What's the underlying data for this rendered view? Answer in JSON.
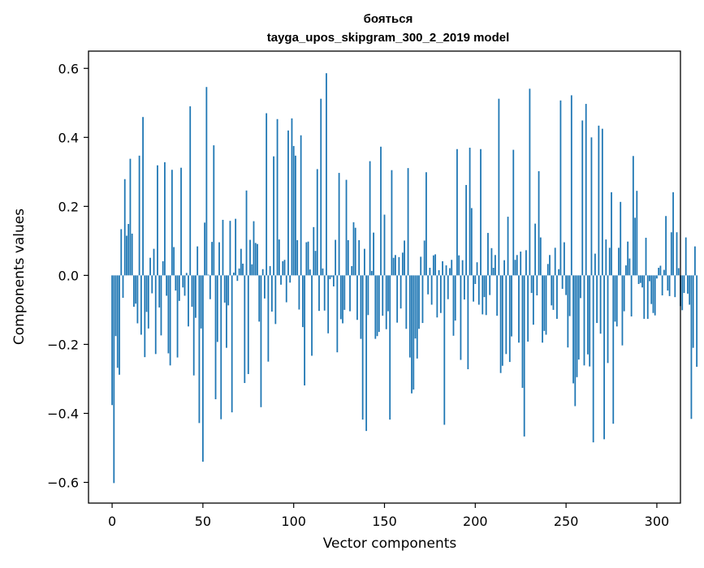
{
  "chart_data": {
    "type": "bar",
    "title": "бояться",
    "subtitle": "tayga_upos_skipgram_300_2_2019 model",
    "xlabel": "Vector components",
    "ylabel": "Components values",
    "xlim": [
      -13,
      313
    ],
    "ylim": [
      -0.66,
      0.65
    ],
    "x_ticks": [
      0,
      50,
      100,
      150,
      200,
      250,
      300
    ],
    "y_ticks": [
      -0.6,
      -0.4,
      -0.2,
      0.0,
      0.2,
      0.4,
      0.6
    ],
    "x_tick_labels": [
      "0",
      "50",
      "100",
      "150",
      "200",
      "250",
      "300"
    ],
    "y_tick_labels": [
      "−0.6",
      "−0.4",
      "−0.2",
      "0.0",
      "0.2",
      "0.4",
      "0.6"
    ],
    "bar_color": "#1f77b4",
    "grid": false,
    "legend": false,
    "values": [
      -0.376,
      -0.602,
      -0.176,
      -0.268,
      -0.288,
      0.134,
      -0.065,
      0.279,
      0.115,
      0.149,
      0.338,
      0.121,
      -0.091,
      -0.082,
      -0.139,
      0.347,
      -0.172,
      0.459,
      -0.237,
      -0.106,
      -0.154,
      0.051,
      -0.052,
      0.077,
      -0.228,
      0.319,
      -0.093,
      -0.174,
      0.041,
      0.328,
      -0.059,
      -0.226,
      -0.261,
      0.306,
      0.082,
      -0.044,
      -0.238,
      -0.074,
      0.312,
      -0.035,
      -0.059,
      0.007,
      -0.148,
      0.49,
      -0.091,
      -0.29,
      -0.123,
      0.084,
      -0.428,
      -0.154,
      -0.54,
      0.153,
      0.546,
      0.002,
      -0.069,
      0.097,
      0.377,
      -0.359,
      -0.193,
      0.096,
      -0.417,
      0.161,
      -0.079,
      -0.21,
      -0.087,
      0.158,
      -0.397,
      0.008,
      0.164,
      -0.016,
      0.02,
      0.077,
      0.034,
      -0.312,
      0.246,
      -0.286,
      0.103,
      0.032,
      0.157,
      0.094,
      0.091,
      -0.134,
      -0.382,
      0.018,
      -0.067,
      0.47,
      -0.25,
      0.027,
      -0.105,
      0.345,
      -0.141,
      0.453,
      0.104,
      -0.027,
      0.041,
      0.045,
      -0.078,
      0.42,
      -0.021,
      0.455,
      0.375,
      0.347,
      0.102,
      -0.099,
      0.406,
      -0.15,
      -0.319,
      0.096,
      0.098,
      0.017,
      -0.233,
      0.14,
      0.071,
      0.308,
      -0.103,
      0.512,
      0.02,
      -0.102,
      0.586,
      -0.168,
      -0.011,
      -0.005,
      -0.032,
      0.103,
      -0.223,
      0.297,
      -0.127,
      -0.139,
      -0.1,
      0.277,
      0.102,
      -0.104,
      0.027,
      0.154,
      0.138,
      -0.129,
      0.102,
      -0.184,
      -0.418,
      0.077,
      -0.451,
      -0.115,
      0.331,
      0.013,
      0.124,
      -0.184,
      -0.176,
      -0.164,
      0.373,
      -0.117,
      0.176,
      -0.156,
      -0.104,
      -0.418,
      0.305,
      0.051,
      0.059,
      -0.137,
      0.053,
      -0.096,
      0.066,
      0.101,
      -0.155,
      0.311,
      -0.238,
      -0.342,
      -0.331,
      -0.183,
      -0.241,
      -0.155,
      0.054,
      -0.138,
      0.101,
      0.299,
      -0.055,
      0.022,
      -0.085,
      0.058,
      0.061,
      -0.122,
      0.015,
      -0.109,
      0.041,
      -0.433,
      0.029,
      -0.069,
      0.021,
      0.045,
      -0.175,
      -0.131,
      0.366,
      0.058,
      -0.245,
      0.044,
      -0.07,
      0.262,
      -0.272,
      0.37,
      0.195,
      -0.076,
      -0.025,
      0.038,
      -0.085,
      0.366,
      -0.113,
      -0.063,
      -0.115,
      0.123,
      -0.057,
      0.079,
      0.022,
      0.059,
      -0.117,
      0.512,
      -0.283,
      -0.262,
      0.044,
      -0.228,
      0.17,
      -0.251,
      -0.177,
      0.364,
      0.045,
      0.059,
      -0.195,
      0.069,
      -0.326,
      -0.467,
      0.073,
      -0.192,
      0.541,
      -0.051,
      -0.143,
      0.15,
      -0.058,
      0.302,
      0.11,
      -0.195,
      -0.161,
      -0.172,
      0.033,
      0.059,
      -0.087,
      -0.1,
      0.08,
      -0.126,
      0.018,
      0.507,
      -0.039,
      0.096,
      -0.057,
      -0.209,
      -0.118,
      0.522,
      -0.313,
      -0.379,
      -0.295,
      -0.244,
      -0.066,
      0.449,
      -0.261,
      0.497,
      -0.229,
      -0.264,
      0.4,
      -0.484,
      0.063,
      -0.138,
      0.434,
      -0.169,
      0.425,
      -0.475,
      0.104,
      -0.254,
      0.08,
      0.241,
      -0.43,
      -0.134,
      -0.148,
      0.08,
      0.213,
      -0.203,
      -0.104,
      0.029,
      0.098,
      0.049,
      -0.119,
      0.346,
      0.167,
      0.245,
      -0.025,
      -0.022,
      -0.035,
      -0.126,
      0.109,
      -0.126,
      -0.017,
      -0.083,
      -0.109,
      -0.116,
      -0.009,
      0.022,
      0.028,
      -0.058,
      0.016,
      0.172,
      -0.044,
      -0.06,
      0.125,
      0.241,
      -0.063,
      0.125,
      0.021,
      -0.089,
      -0.101,
      -0.051,
      0.11,
      -0.053,
      -0.085,
      -0.416,
      -0.21,
      0.084,
      -0.265
    ]
  }
}
